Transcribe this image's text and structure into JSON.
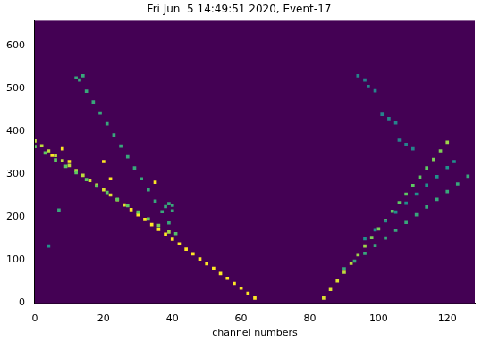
{
  "chart_data": {
    "type": "heatmap",
    "title": "Fri Jun  5 14:49:51 2020, Event-17",
    "x_label": "channel numbers",
    "xlim": [
      0,
      128
    ],
    "xticks": [
      0,
      20,
      40,
      60,
      80,
      100,
      120
    ],
    "ylim": [
      0,
      660
    ],
    "yticks": [
      0,
      100,
      200,
      300,
      400,
      500,
      600
    ],
    "grid": false,
    "color_range": [
      0,
      1
    ],
    "cells": [
      [
        0,
        378,
        0.9
      ],
      [
        2,
        367,
        0.9
      ],
      [
        4,
        355,
        0.9
      ],
      [
        6,
        344,
        0.9
      ],
      [
        8,
        332,
        0.9
      ],
      [
        10,
        321,
        0.9
      ],
      [
        12,
        309,
        0.9
      ],
      [
        14,
        298,
        0.9
      ],
      [
        16,
        286,
        0.95
      ],
      [
        18,
        275,
        0.95
      ],
      [
        20,
        264,
        0.95
      ],
      [
        22,
        252,
        0.95
      ],
      [
        24,
        241,
        0.95
      ],
      [
        26,
        229,
        0.95
      ],
      [
        28,
        218,
        1
      ],
      [
        30,
        206,
        1
      ],
      [
        32,
        195,
        1
      ],
      [
        34,
        183,
        1
      ],
      [
        36,
        172,
        1
      ],
      [
        38,
        161,
        1
      ],
      [
        40,
        149,
        1
      ],
      [
        42,
        138,
        1
      ],
      [
        44,
        126,
        1
      ],
      [
        46,
        115,
        1
      ],
      [
        48,
        103,
        1
      ],
      [
        50,
        92,
        1
      ],
      [
        52,
        81,
        1
      ],
      [
        54,
        69,
        1
      ],
      [
        56,
        58,
        1
      ],
      [
        58,
        46,
        1
      ],
      [
        60,
        35,
        1
      ],
      [
        62,
        23,
        1
      ],
      [
        64,
        12,
        1
      ],
      [
        0,
        365,
        0.75
      ],
      [
        3,
        350,
        0.75
      ],
      [
        6,
        334,
        0.75
      ],
      [
        9,
        319,
        0.75
      ],
      [
        12,
        304,
        0.75
      ],
      [
        15,
        288,
        0.75
      ],
      [
        18,
        273,
        0.75
      ],
      [
        21,
        258,
        0.75
      ],
      [
        24,
        242,
        0.75
      ],
      [
        27,
        227,
        0.75
      ],
      [
        30,
        212,
        0.75
      ],
      [
        33,
        196,
        0.75
      ],
      [
        36,
        181,
        0.8
      ],
      [
        39,
        166,
        0.85
      ],
      [
        12,
        525,
        0.6
      ],
      [
        14,
        530,
        0.6
      ],
      [
        13,
        520,
        0.6
      ],
      [
        15,
        494,
        0.6
      ],
      [
        17,
        469,
        0.6
      ],
      [
        19,
        443,
        0.6
      ],
      [
        21,
        418,
        0.6
      ],
      [
        23,
        392,
        0.6
      ],
      [
        25,
        366,
        0.6
      ],
      [
        27,
        341,
        0.6
      ],
      [
        29,
        315,
        0.6
      ],
      [
        31,
        290,
        0.6
      ],
      [
        33,
        264,
        0.6
      ],
      [
        35,
        238,
        0.6
      ],
      [
        37,
        213,
        0.6
      ],
      [
        39,
        187,
        0.6
      ],
      [
        41,
        162,
        0.7
      ],
      [
        38,
        225,
        0.6
      ],
      [
        39,
        232,
        0.6
      ],
      [
        40,
        228,
        0.6
      ],
      [
        40,
        215,
        0.6
      ],
      [
        5,
        345,
        1
      ],
      [
        8,
        360,
        1
      ],
      [
        10,
        330,
        1
      ],
      [
        20,
        330,
        1
      ],
      [
        22,
        290,
        1
      ],
      [
        35,
        282,
        1
      ],
      [
        7,
        217,
        0.6
      ],
      [
        4,
        133,
        0.5
      ],
      [
        84,
        12,
        0.95
      ],
      [
        86,
        32,
        0.95
      ],
      [
        88,
        52,
        0.95
      ],
      [
        90,
        72,
        0.9
      ],
      [
        92,
        93,
        0.9
      ],
      [
        94,
        113,
        0.85
      ],
      [
        96,
        133,
        0.85
      ],
      [
        98,
        153,
        0.8
      ],
      [
        100,
        173,
        0.8
      ],
      [
        102,
        193,
        0.8
      ],
      [
        104,
        214,
        0.75
      ],
      [
        106,
        234,
        0.75
      ],
      [
        108,
        254,
        0.75
      ],
      [
        110,
        274,
        0.75
      ],
      [
        112,
        294,
        0.75
      ],
      [
        114,
        315,
        0.75
      ],
      [
        116,
        335,
        0.8
      ],
      [
        118,
        355,
        0.8
      ],
      [
        120,
        375,
        0.85
      ],
      [
        90,
        80,
        0.6
      ],
      [
        93,
        98,
        0.6
      ],
      [
        96,
        116,
        0.6
      ],
      [
        99,
        134,
        0.6
      ],
      [
        102,
        152,
        0.6
      ],
      [
        105,
        170,
        0.6
      ],
      [
        108,
        188,
        0.6
      ],
      [
        111,
        206,
        0.6
      ],
      [
        114,
        224,
        0.6
      ],
      [
        117,
        242,
        0.6
      ],
      [
        120,
        260,
        0.6
      ],
      [
        123,
        278,
        0.6
      ],
      [
        126,
        296,
        0.6
      ],
      [
        96,
        150,
        0.5
      ],
      [
        99,
        171,
        0.5
      ],
      [
        102,
        192,
        0.5
      ],
      [
        105,
        212,
        0.5
      ],
      [
        108,
        233,
        0.5
      ],
      [
        111,
        254,
        0.5
      ],
      [
        114,
        275,
        0.5
      ],
      [
        117,
        295,
        0.5
      ],
      [
        120,
        316,
        0.5
      ],
      [
        122,
        330,
        0.5
      ],
      [
        94,
        530,
        0.45
      ],
      [
        96,
        520,
        0.45
      ],
      [
        97,
        505,
        0.45
      ],
      [
        99,
        495,
        0.45
      ],
      [
        101,
        440,
        0.45
      ],
      [
        103,
        430,
        0.45
      ],
      [
        105,
        420,
        0.45
      ],
      [
        106,
        380,
        0.45
      ],
      [
        108,
        370,
        0.45
      ],
      [
        110,
        360,
        0.45
      ]
    ]
  }
}
